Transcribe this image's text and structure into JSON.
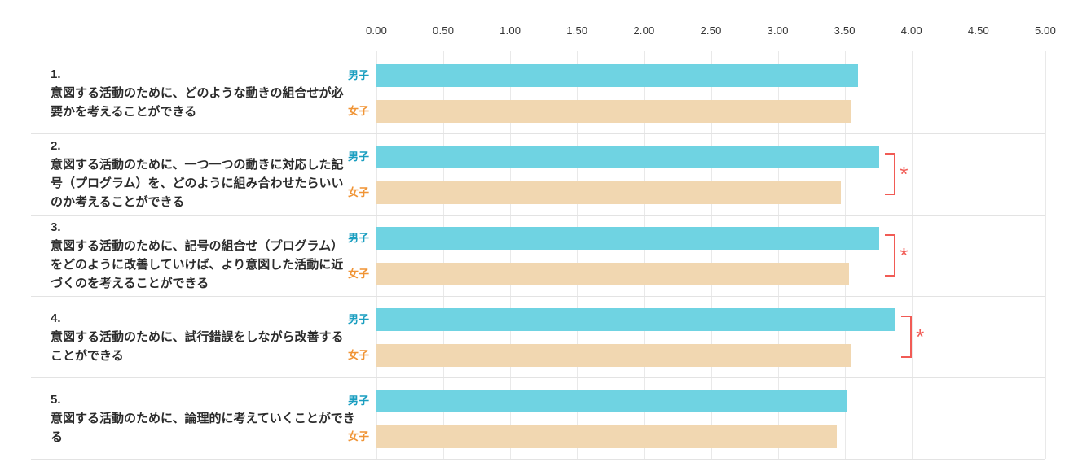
{
  "chart_data": {
    "type": "bar",
    "orientation": "horizontal",
    "title": "",
    "xlabel": "",
    "ylabel": "",
    "xlim": [
      0,
      5
    ],
    "grid": true,
    "legend_position": "per-bar-left-labels",
    "x_ticks": [
      "0.00",
      "0.50",
      "1.00",
      "1.50",
      "2.00",
      "2.50",
      "3.00",
      "3.50",
      "4.00",
      "4.50",
      "5.00"
    ],
    "series_names": [
      "男子",
      "女子"
    ],
    "significance_marker": "*",
    "colors": {
      "male_bar": "#6fd3e2",
      "female_bar": "#f1d7b1",
      "male_label": "#1a9ec0",
      "female_label": "#f09435",
      "significance": "#f15b55",
      "gridline": "#e9e9e9",
      "row_separator": "#e3e3e3",
      "question_text": "#2b2b2b",
      "axis_text": "#333333"
    },
    "rows": [
      {
        "number": "1.",
        "question": "意図する活動のために、どのような動きの組合せが必要かを考えることができる",
        "male": 3.6,
        "female": 3.55,
        "significant": false
      },
      {
        "number": "2.",
        "question": "意図する活動のために、一つ一つの動きに対応した記号（プログラム）を、どのように組み合わせたらいいのか考えることができる",
        "male": 3.76,
        "female": 3.47,
        "significant": true
      },
      {
        "number": "3.",
        "question": "意図する活動のために、記号の組合せ（プログラム）をどのように改善していけば、より意図した活動に近づくのを考えることができる",
        "male": 3.76,
        "female": 3.53,
        "significant": true
      },
      {
        "number": "4.",
        "question": "意図する活動のために、試行錯誤をしながら改善することができる",
        "male": 3.88,
        "female": 3.55,
        "significant": true
      },
      {
        "number": "5.",
        "question": "意図する活動のために、論理的に考えていくことができる",
        "male": 3.52,
        "female": 3.44,
        "significant": false
      }
    ]
  }
}
